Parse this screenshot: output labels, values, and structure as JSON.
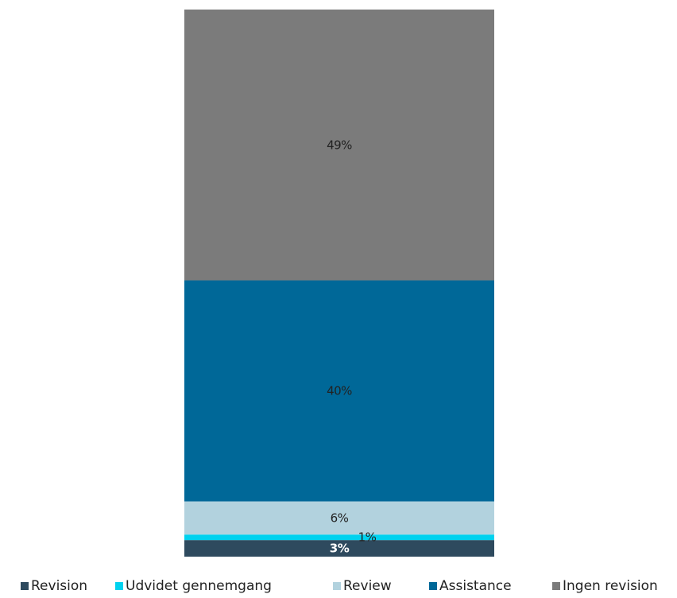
{
  "chart_data": {
    "type": "bar",
    "stacked": true,
    "categories": [
      ""
    ],
    "series": [
      {
        "name": "Revision",
        "values": [
          3
        ],
        "label": "3%",
        "color": "#2e4a5e",
        "label_color": "#ffffff"
      },
      {
        "name": "Udvidet gennemgang",
        "values": [
          1
        ],
        "label": "1%",
        "color": "#00d2ef",
        "label_color": "#222222"
      },
      {
        "name": "Review",
        "values": [
          6
        ],
        "label": "6%",
        "color": "#b2d2de",
        "label_color": "#222222"
      },
      {
        "name": "Assistance",
        "values": [
          40
        ],
        "label": "40%",
        "color": "#006898",
        "label_color": "#222222"
      },
      {
        "name": "Ingen revision",
        "values": [
          49
        ],
        "label": "49%",
        "color": "#7b7b7b",
        "label_color": "#222222"
      }
    ],
    "unit": "%",
    "ylim": [
      0,
      99
    ],
    "grid": false,
    "axes_visible": false,
    "legend_position": "bottom"
  }
}
